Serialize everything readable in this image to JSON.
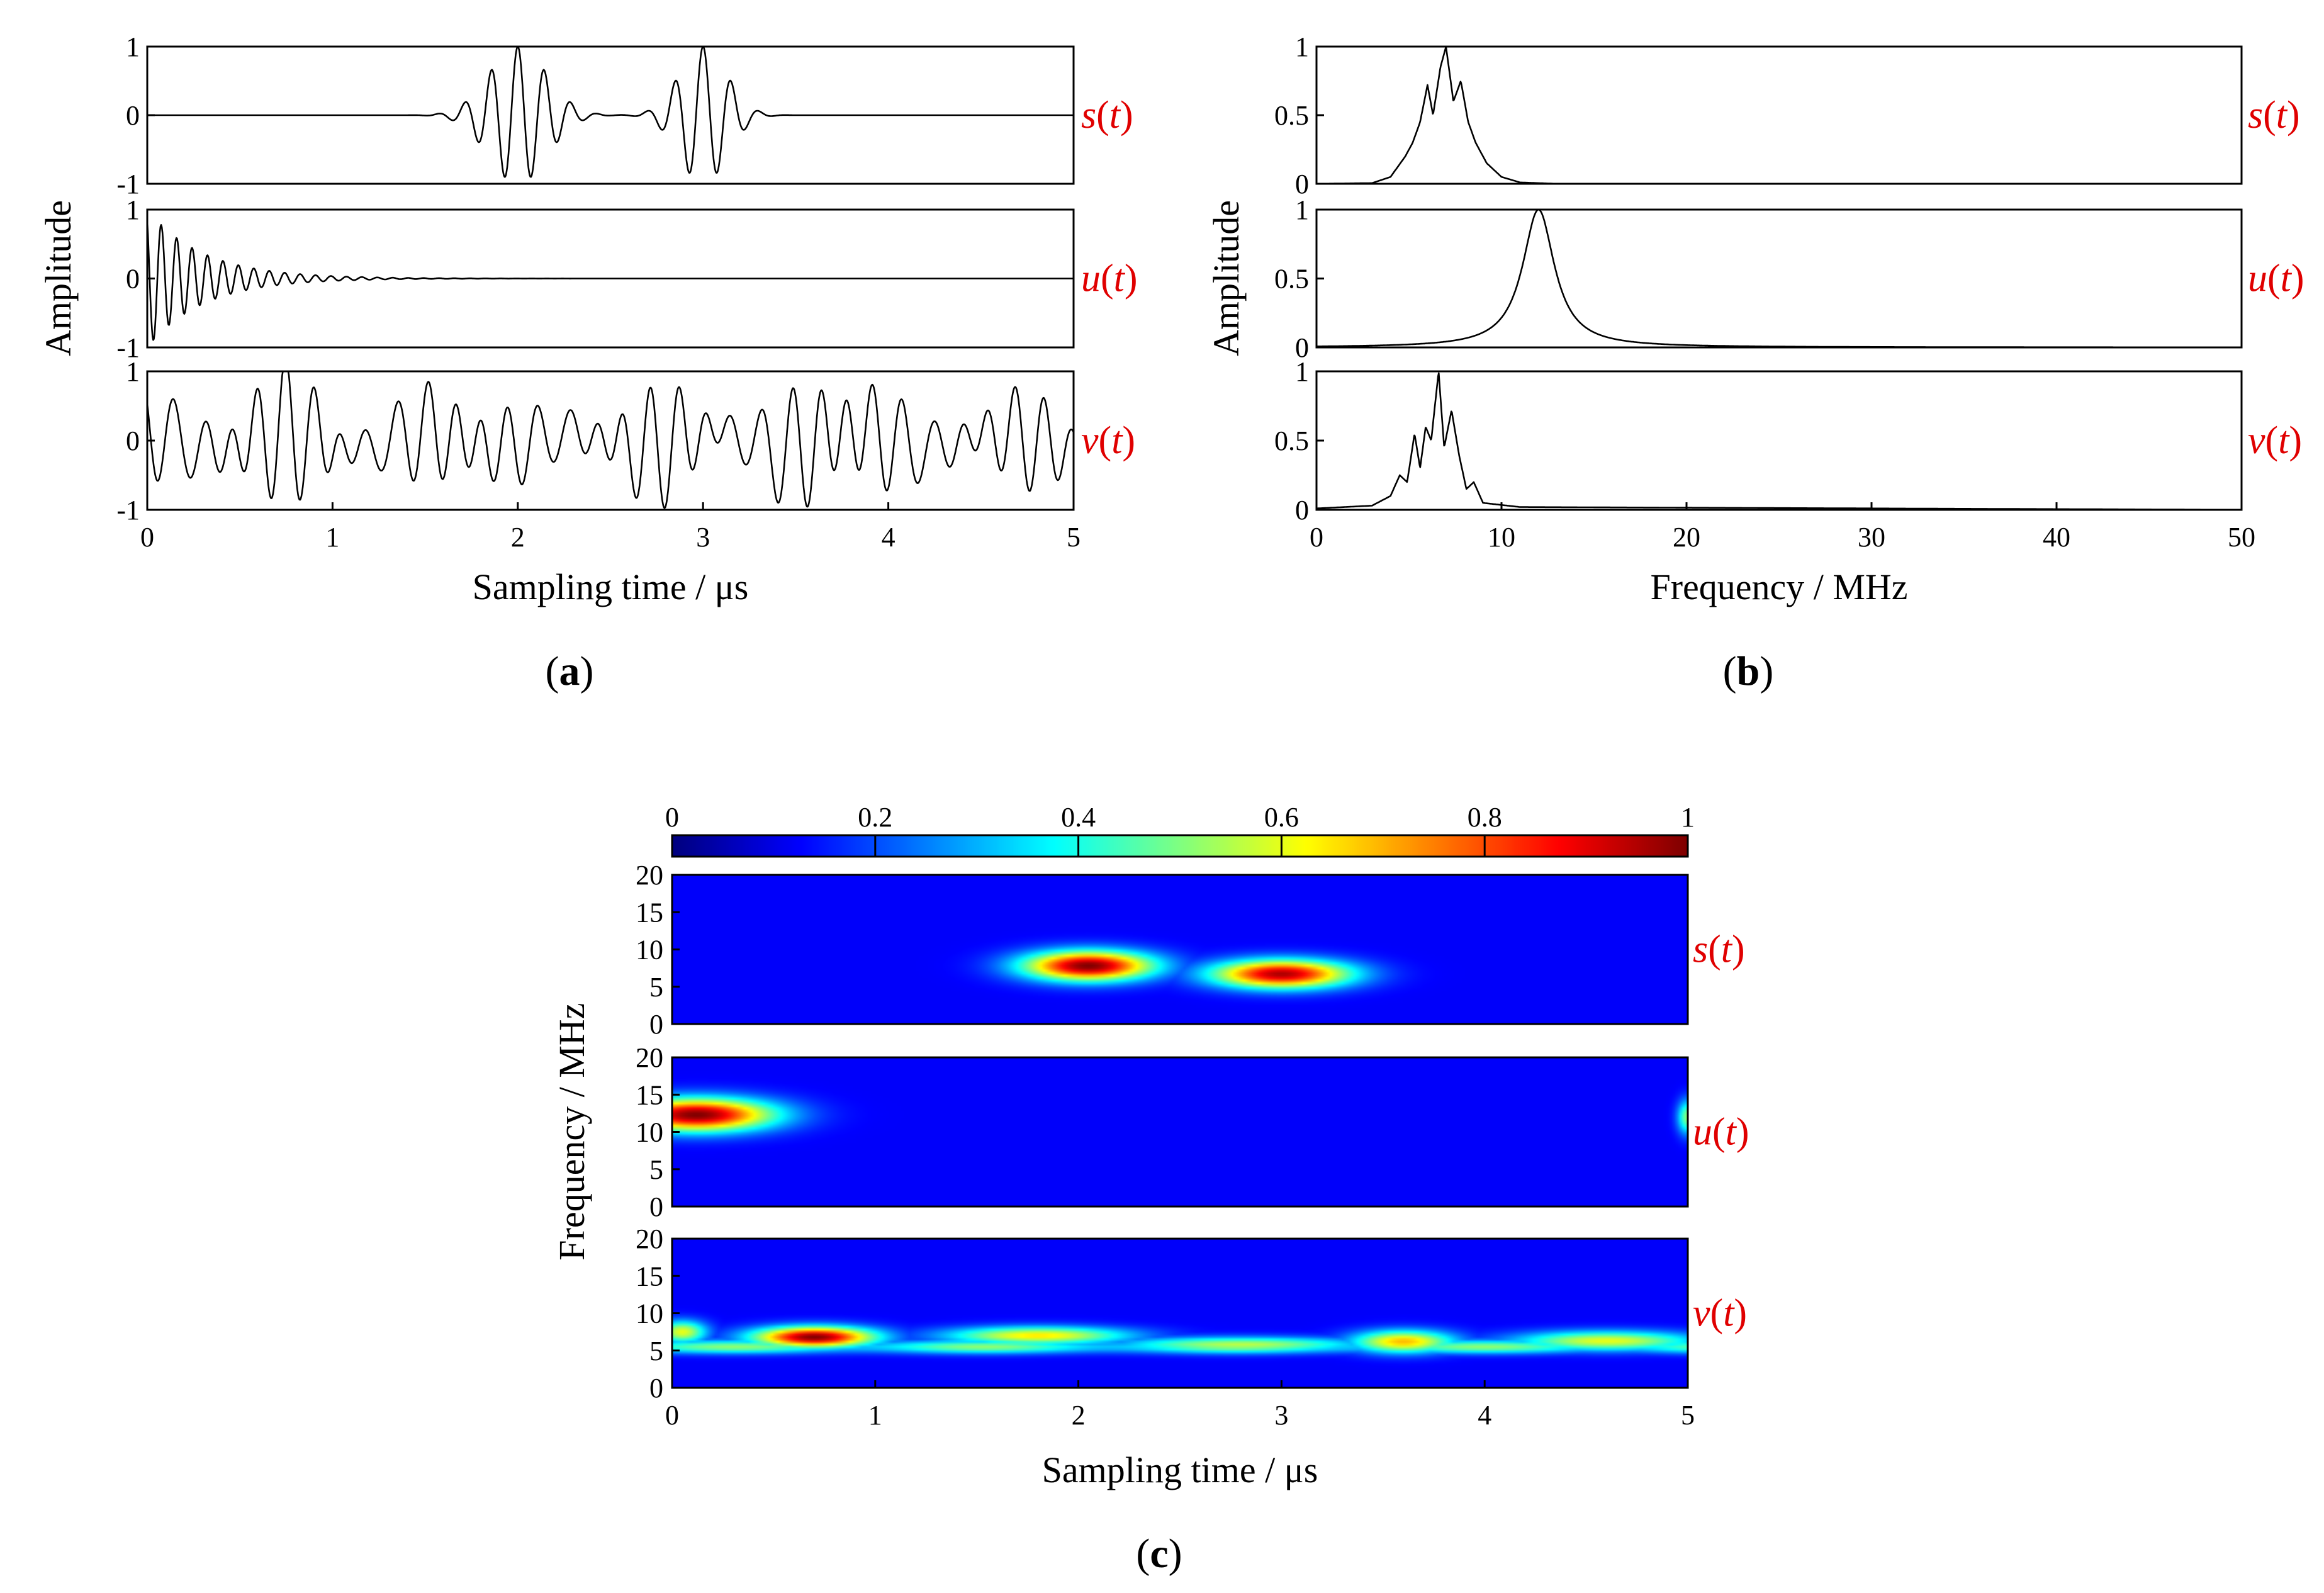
{
  "colors": {
    "signal_label": "#e00000",
    "line": "#000000",
    "heat_bg": "#00007f"
  },
  "chart_data": [
    {
      "id": "a",
      "type": "line",
      "subfigure": "a",
      "xlabel": "Sampling time / μs",
      "ylabel": "Amplitude",
      "xlim": [
        0,
        5
      ],
      "xticks": [
        "0",
        "1",
        "2",
        "3",
        "4",
        "5"
      ],
      "ylim": [
        -1,
        1
      ],
      "yticks": [
        "-1",
        "0",
        "1"
      ],
      "series": [
        {
          "name": "s(t)",
          "label_main": "s",
          "label_arg": "t",
          "packets": [
            {
              "center": 2.0,
              "freq": 7.0,
              "width": 0.22,
              "amp": 1.0
            },
            {
              "center": 3.0,
              "freq": 6.6,
              "width": 0.18,
              "amp": 1.0
            }
          ]
        },
        {
          "name": "u(t)",
          "label_main": "u",
          "label_arg": "t",
          "decay": {
            "freq": 12.0,
            "tau": 0.3,
            "amp": 1.0
          }
        },
        {
          "name": "v(t)",
          "label_main": "v",
          "label_arg": "t",
          "harmonics": [
            {
              "freq": 6.6,
              "amp": 0.55,
              "phase": 0.4
            },
            {
              "freq": 5.1,
              "amp": 0.3,
              "phase": 1.3
            },
            {
              "freq": 7.6,
              "amp": 0.22,
              "phase": 2.1
            },
            {
              "freq": 1.3,
              "amp": 0.15,
              "phase": 0.2
            }
          ]
        }
      ]
    },
    {
      "id": "b",
      "type": "line",
      "subfigure": "b",
      "xlabel": "Frequency / MHz",
      "ylabel": "Amplitude",
      "xlim": [
        0,
        50
      ],
      "xticks": [
        "0",
        "10",
        "20",
        "30",
        "40",
        "50"
      ],
      "ylim": [
        0,
        1
      ],
      "yticks": [
        "0",
        "0.5",
        "1"
      ],
      "series": [
        {
          "name": "s(t)",
          "label_main": "s",
          "label_arg": "t",
          "points": [
            [
              0,
              0
            ],
            [
              3,
              0.005
            ],
            [
              4,
              0.05
            ],
            [
              4.8,
              0.2
            ],
            [
              5.2,
              0.3
            ],
            [
              5.6,
              0.45
            ],
            [
              6.0,
              0.72
            ],
            [
              6.3,
              0.5
            ],
            [
              6.7,
              0.85
            ],
            [
              7.0,
              1.0
            ],
            [
              7.4,
              0.6
            ],
            [
              7.8,
              0.75
            ],
            [
              8.2,
              0.45
            ],
            [
              8.6,
              0.3
            ],
            [
              9.2,
              0.15
            ],
            [
              10,
              0.05
            ],
            [
              11,
              0.01
            ],
            [
              13,
              0
            ],
            [
              50,
              0
            ]
          ]
        },
        {
          "name": "u(t)",
          "label_main": "u",
          "label_arg": "t",
          "lorentz": {
            "center": 12.0,
            "gamma": 1.05,
            "amp": 1.0
          }
        },
        {
          "name": "v(t)",
          "label_main": "v",
          "label_arg": "t",
          "points": [
            [
              0,
              0.01
            ],
            [
              3,
              0.03
            ],
            [
              4,
              0.1
            ],
            [
              4.5,
              0.25
            ],
            [
              4.9,
              0.2
            ],
            [
              5.3,
              0.55
            ],
            [
              5.6,
              0.3
            ],
            [
              5.9,
              0.6
            ],
            [
              6.2,
              0.5
            ],
            [
              6.6,
              1.0
            ],
            [
              6.9,
              0.45
            ],
            [
              7.3,
              0.72
            ],
            [
              7.7,
              0.4
            ],
            [
              8.1,
              0.15
            ],
            [
              8.5,
              0.2
            ],
            [
              9,
              0.05
            ],
            [
              11,
              0.02
            ],
            [
              50,
              0
            ]
          ]
        }
      ]
    },
    {
      "id": "c",
      "type": "heatmap",
      "subfigure": "c",
      "xlabel": "Sampling time / μs",
      "ylabel": "Frequency / MHz",
      "xlim": [
        0,
        5
      ],
      "xticks": [
        "0",
        "1",
        "2",
        "3",
        "4",
        "5"
      ],
      "colorbar_ticks": [
        "0",
        "0.2",
        "0.4",
        "0.6",
        "0.8",
        "1"
      ],
      "panels": [
        {
          "name": "s(t)",
          "label_main": "s",
          "label_arg": "t",
          "ylim": [
            0,
            20
          ],
          "yticks": [
            "0",
            "5",
            "10",
            "15",
            "20"
          ],
          "blobs": [
            {
              "t": 2.05,
              "f": 7.8,
              "st": 0.32,
              "sf": 2.0,
              "a": 1.0
            },
            {
              "t": 3.0,
              "f": 6.7,
              "st": 0.34,
              "sf": 1.9,
              "a": 0.95
            }
          ]
        },
        {
          "name": "u(t)",
          "label_main": "u",
          "label_arg": "t",
          "ylim": [
            0,
            20
          ],
          "yticks": [
            "0",
            "5",
            "10",
            "15",
            "20"
          ],
          "blobs": [
            {
              "t": 0.12,
              "f": 12.3,
              "st": 0.38,
              "sf": 2.2,
              "a": 1.0
            },
            {
              "t": 5.0,
              "f": 12.0,
              "st": 0.05,
              "sf": 2.3,
              "a": 0.45
            }
          ]
        },
        {
          "name": "v(t)",
          "label_main": "v",
          "label_arg": "t",
          "ylim": [
            0,
            20
          ],
          "yticks": [
            "0",
            "5",
            "10",
            "15",
            "20"
          ],
          "blobs": [
            {
              "t": 0.7,
              "f": 6.8,
              "st": 0.3,
              "sf": 1.4,
              "a": 1.0
            },
            {
              "t": 1.8,
              "f": 7.0,
              "st": 0.45,
              "sf": 1.2,
              "a": 0.6
            },
            {
              "t": 3.6,
              "f": 6.2,
              "st": 0.25,
              "sf": 1.5,
              "a": 0.65
            },
            {
              "t": 4.6,
              "f": 6.3,
              "st": 0.45,
              "sf": 1.3,
              "a": 0.55
            },
            {
              "t": 2.8,
              "f": 5.8,
              "st": 0.6,
              "sf": 1.0,
              "a": 0.5
            },
            {
              "t": 0.05,
              "f": 7.5,
              "st": 0.12,
              "sf": 1.5,
              "a": 0.55
            }
          ],
          "band": {
            "f": 5.5,
            "sf": 0.9,
            "a": 0.45
          }
        }
      ]
    }
  ]
}
